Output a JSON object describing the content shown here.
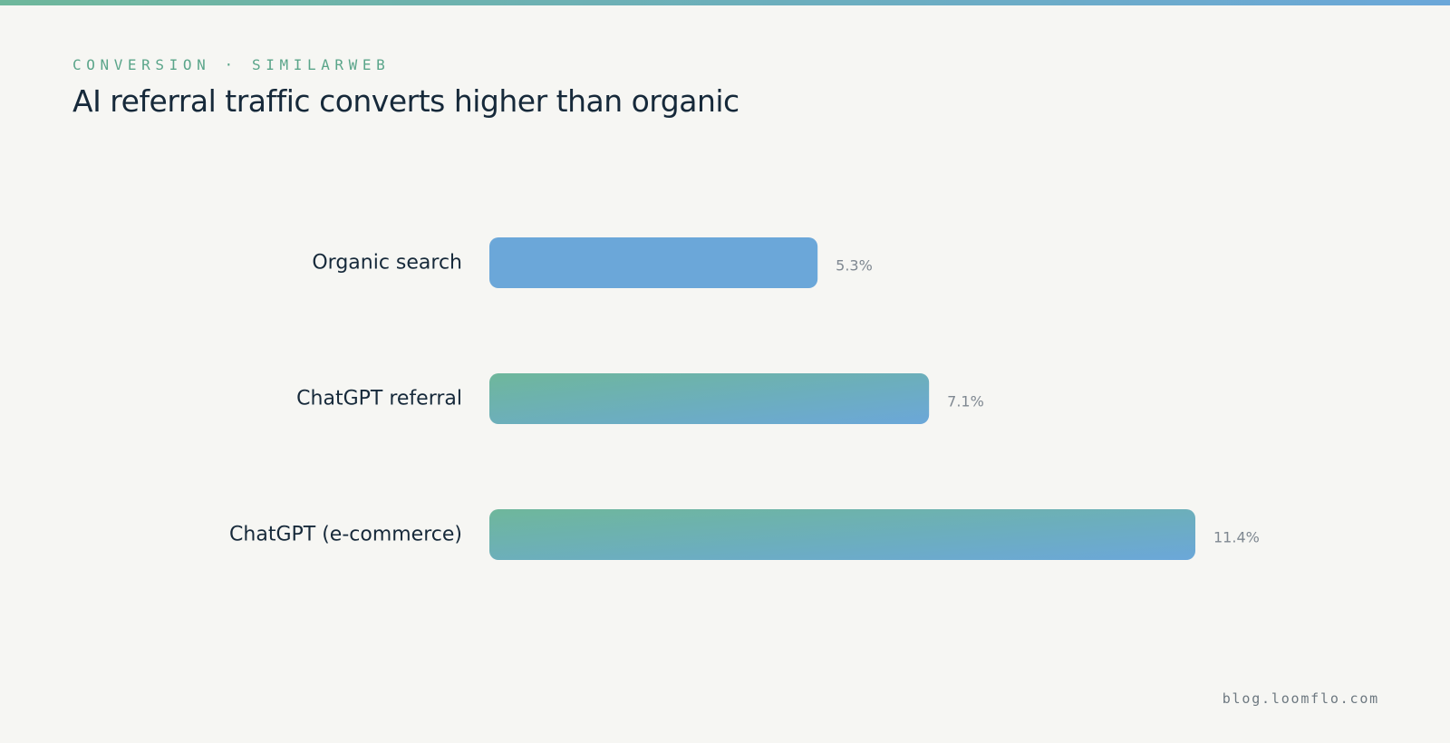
{
  "header": {
    "eyebrow": "CONVERSION · SIMILARWEB",
    "title": "AI referral traffic converts higher than organic"
  },
  "footer": {
    "site": "blog.loomflo.com"
  },
  "colors": {
    "accent_green": "#6eb79b",
    "accent_blue": "#6ba7d9",
    "text_dark": "#16293a",
    "value_grey": "#7f8891",
    "background": "#f6f6f3"
  },
  "chart_data": {
    "type": "bar",
    "orientation": "horizontal",
    "title": "AI referral traffic converts higher than organic",
    "categories": [
      "Organic search",
      "ChatGPT referral",
      "ChatGPT (e-commerce)"
    ],
    "values": [
      5.3,
      7.1,
      11.4
    ],
    "value_labels": [
      "5.3%",
      "7.1%",
      "11.4%"
    ],
    "bar_styles": [
      "solid-blue",
      "green-blue-gradient",
      "green-blue-gradient"
    ],
    "xlim": [
      0,
      11.4
    ],
    "grid": false,
    "legend": "none"
  }
}
